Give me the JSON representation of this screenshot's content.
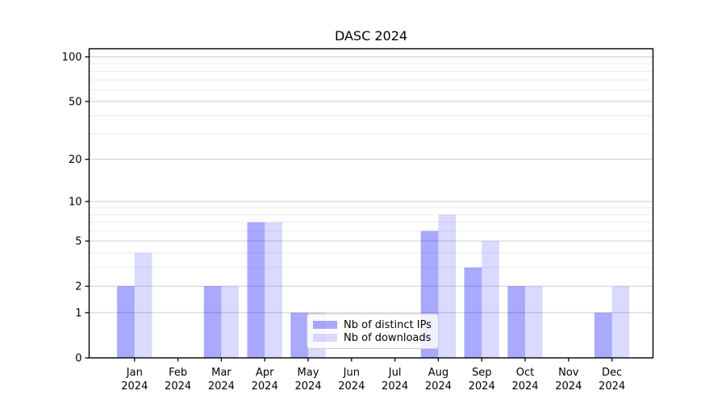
{
  "chart_data": {
    "type": "bar",
    "title": "DASC 2024",
    "categories": [
      "Jan",
      "Feb",
      "Mar",
      "Apr",
      "May",
      "Jun",
      "Jul",
      "Aug",
      "Sep",
      "Oct",
      "Nov",
      "Dec"
    ],
    "x_tick_year": "2024",
    "series": [
      {
        "name": "Nb of distinct IPs",
        "color": "rgba(10,10,250,0.35)",
        "values": [
          2,
          0,
          2,
          7,
          1,
          0,
          0,
          6,
          3,
          2,
          0,
          1
        ]
      },
      {
        "name": "Nb of downloads",
        "color": "rgba(10,10,250,0.15)",
        "values": [
          4,
          0,
          2,
          7,
          1,
          0,
          0,
          8,
          5,
          2,
          0,
          2
        ]
      }
    ],
    "y_axis": {
      "scale": "log10(value+1)",
      "ticks": [
        0,
        1,
        2,
        5,
        10,
        20,
        50,
        100
      ],
      "minor_gridlines": [
        3,
        4,
        6,
        7,
        8,
        9,
        30,
        40,
        60,
        70,
        80,
        90
      ],
      "ylim": [
        0,
        113
      ]
    },
    "grid": true,
    "legend_position": "lower-center-inside"
  },
  "colors": {
    "background": "#ffffff",
    "spine": "#000000",
    "tick_text": "#000000",
    "major_grid": "#cdcdcd",
    "minor_grid": "#ececec"
  }
}
